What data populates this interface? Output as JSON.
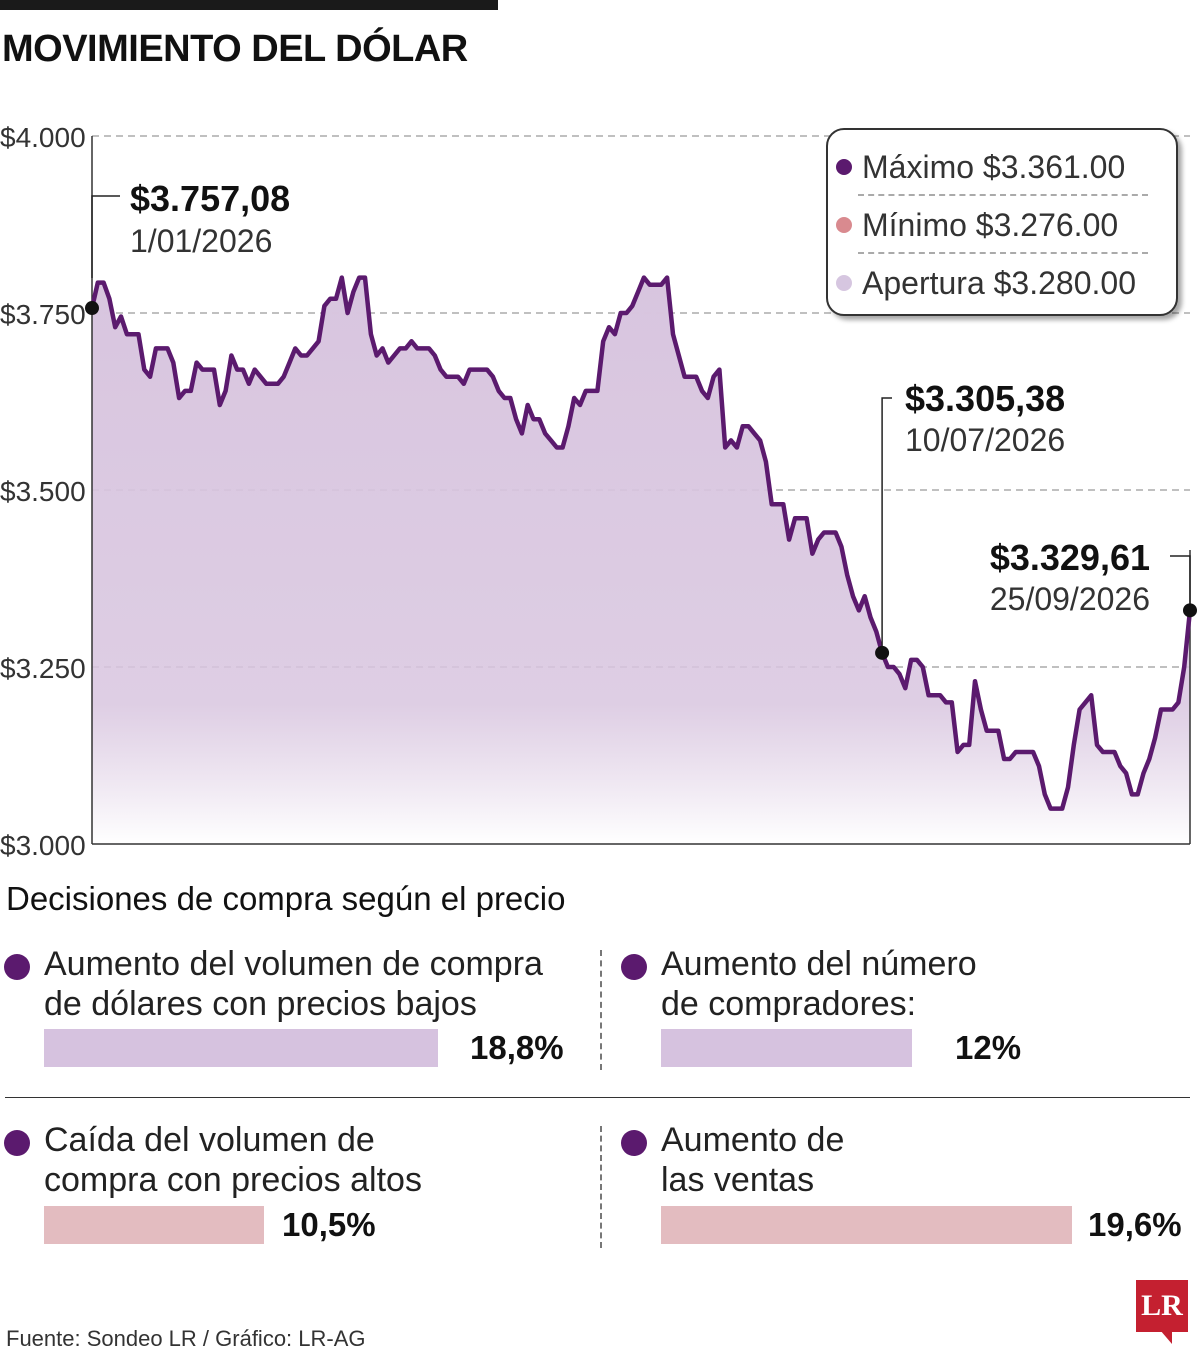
{
  "title": "MOVIMIENTO DEL DÓLAR",
  "colors": {
    "line": "#5b1a6e",
    "area": "#d8c5df",
    "max_dot": "#5b1a6e",
    "min_dot": "#d98a8f",
    "open_dot": "#d6c6e0",
    "bar_purple": "#d6c2df",
    "bar_pink": "#e3bcc0",
    "brand": "#c42030"
  },
  "legend": {
    "items": [
      {
        "label": "Máximo $3.361.00",
        "color": "#5b1a6e"
      },
      {
        "label": "Mínimo $3.276.00",
        "color": "#d98a8f"
      },
      {
        "label": "Apertura $3.280.00",
        "color": "#d6c6e0"
      }
    ]
  },
  "annotations": [
    {
      "value": "$3.757,08",
      "date": "1/01/2026"
    },
    {
      "value": "$3.305,38",
      "date": "10/07/2026"
    },
    {
      "value": "$3.329,61",
      "date": "25/09/2026"
    }
  ],
  "chart_data": {
    "type": "area",
    "title": "MOVIMIENTO DEL DÓLAR",
    "xlabel": "",
    "ylabel": "",
    "x_range": [
      "1/01/2026",
      "25/09/2026"
    ],
    "ylim": [
      3000,
      4000
    ],
    "yticks": [
      3000,
      3250,
      3500,
      3750,
      4000
    ],
    "ytick_labels": [
      "$3.000",
      "$3.250",
      "$3.500",
      "$3.750",
      "$4.000"
    ],
    "grid": "horizontal dashed",
    "values": [
      3757,
      3793,
      3793,
      3770,
      3730,
      3745,
      3720,
      3720,
      3720,
      3670,
      3660,
      3700,
      3700,
      3700,
      3680,
      3630,
      3640,
      3640,
      3680,
      3670,
      3670,
      3670,
      3620,
      3640,
      3690,
      3670,
      3670,
      3650,
      3670,
      3660,
      3650,
      3650,
      3650,
      3660,
      3680,
      3700,
      3690,
      3690,
      3700,
      3710,
      3760,
      3770,
      3770,
      3800,
      3750,
      3780,
      3800,
      3800,
      3720,
      3690,
      3700,
      3680,
      3690,
      3700,
      3700,
      3710,
      3700,
      3700,
      3700,
      3690,
      3670,
      3660,
      3660,
      3660,
      3650,
      3670,
      3670,
      3670,
      3670,
      3660,
      3640,
      3630,
      3630,
      3600,
      3580,
      3620,
      3600,
      3600,
      3580,
      3570,
      3560,
      3560,
      3590,
      3630,
      3620,
      3640,
      3640,
      3640,
      3710,
      3730,
      3720,
      3750,
      3750,
      3760,
      3780,
      3800,
      3790,
      3790,
      3790,
      3800,
      3720,
      3690,
      3660,
      3660,
      3660,
      3640,
      3630,
      3660,
      3670,
      3560,
      3570,
      3560,
      3590,
      3590,
      3580,
      3570,
      3540,
      3480,
      3480,
      3480,
      3430,
      3460,
      3460,
      3460,
      3410,
      3430,
      3440,
      3440,
      3440,
      3420,
      3380,
      3350,
      3330,
      3350,
      3320,
      3300,
      3270,
      3250,
      3250,
      3240,
      3220,
      3260,
      3260,
      3250,
      3210,
      3210,
      3210,
      3200,
      3200,
      3130,
      3140,
      3140,
      3230,
      3190,
      3160,
      3160,
      3160,
      3120,
      3120,
      3130,
      3130,
      3130,
      3130,
      3110,
      3070,
      3050,
      3050,
      3050,
      3080,
      3140,
      3190,
      3200,
      3210,
      3140,
      3130,
      3130,
      3130,
      3110,
      3100,
      3070,
      3070,
      3100,
      3120,
      3150,
      3190,
      3190,
      3190,
      3200,
      3250,
      3330
    ]
  },
  "bars_section": {
    "subtitle": "Decisiones de compra según el precio",
    "items": [
      {
        "line1": "Aumento del volumen de compra",
        "line2": "de dólares con precios bajos",
        "pct_label": "18,8%",
        "value": 18.8,
        "color": "#d6c2df"
      },
      {
        "line1": "Aumento del número",
        "line2": "de compradores:",
        "pct_label": "12%",
        "value": 12,
        "color": "#d6c2df"
      },
      {
        "line1": "Caída del volumen de",
        "line2": "compra con precios altos",
        "pct_label": "10,5%",
        "value": 10.5,
        "color": "#e3bcc0"
      },
      {
        "line1": "Aumento de",
        "line2": "las ventas",
        "pct_label": "19,6%",
        "value": 19.6,
        "color": "#e3bcc0"
      }
    ]
  },
  "footer": {
    "source": "Fuente: Sondeo LR / Gráfico: LR-AG",
    "logo": "LR"
  }
}
